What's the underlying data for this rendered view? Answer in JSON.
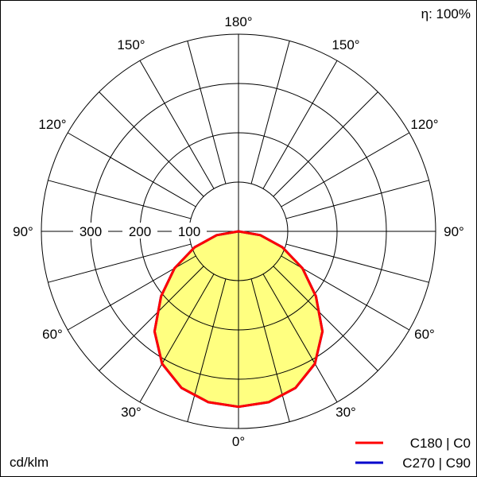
{
  "chart_data": {
    "type": "polar-line",
    "unit_label": "cd/klm",
    "efficiency_label": "η: 100%",
    "radial_ticks": [
      100,
      200,
      300
    ],
    "radial_max": 400,
    "angle_labels": [
      "0°",
      "30°",
      "60°",
      "90°",
      "120°",
      "150°",
      "180°"
    ],
    "grid": true,
    "legend_placement": "bottom-right",
    "gamma": [
      0,
      10,
      20,
      30,
      40,
      50,
      60,
      70,
      80,
      90
    ],
    "series": [
      {
        "name": "C180 | C0",
        "color": "#ff0000",
        "values": [
          356,
          352,
          338,
          310,
          265,
          205,
          150,
          95,
          45,
          0
        ]
      },
      {
        "name": "C270 | C90",
        "color": "#0000cc",
        "values": [
          356,
          352,
          338,
          310,
          265,
          205,
          150,
          95,
          45,
          0
        ]
      }
    ],
    "fill_color": "#ffff80"
  }
}
